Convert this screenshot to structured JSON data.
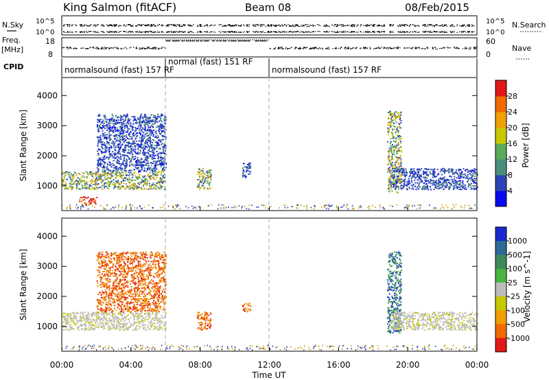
{
  "header": {
    "radar": "King Salmon (fitACF)",
    "beam": "Beam 08",
    "date": "08/Feb/2015"
  },
  "strips": {
    "nsky_label": "N.Sky",
    "nsky_ticks": [
      "10^5",
      "10^0"
    ],
    "nsearch_label": "N.Search",
    "freq_label": "Freq.",
    "freq_unit": "[MHz]",
    "freq_ticks": [
      "18",
      "8"
    ],
    "nave_label": "Nave",
    "nave_ticks": [
      "60",
      "0"
    ],
    "cpid_label": "CPID"
  },
  "cpid_segments": [
    {
      "label": "normalsound (fast) 157 RF",
      "start_hour": 0,
      "end_hour": 6
    },
    {
      "label": "normal (fast) 151 RF",
      "start_hour": 6,
      "end_hour": 12
    },
    {
      "label": "normalsound (fast) 157 RF",
      "start_hour": 12,
      "end_hour": 24
    }
  ],
  "x_axis": {
    "label": "Time UT",
    "ticks": [
      "00:00",
      "04:00",
      "08:00",
      "12:00",
      "16:00",
      "20:00",
      "00:00"
    ]
  },
  "chart_data": [
    {
      "type": "heatmap",
      "name": "power",
      "xlabel": "Time UT",
      "ylabel": "Slant Range [km]",
      "xlim_hours": [
        0,
        24
      ],
      "ylim": [
        180,
        4600
      ],
      "y_ticks": [
        1000,
        2000,
        3000,
        4000
      ],
      "colorbar": {
        "label": "Power [dB]",
        "ticks": [
          "4",
          "8",
          "12",
          "16",
          "20",
          "24",
          "28"
        ],
        "colors": [
          "#0a0af0",
          "#2d44b4",
          "#4a8f7c",
          "#5aaa5a",
          "#c8c800",
          "#f0a000",
          "#f06a00",
          "#e01818"
        ]
      },
      "scatter_regions": [
        {
          "t_start": 0.0,
          "t_end": 6.0,
          "r_start": 900,
          "r_end": 1500,
          "dominant": "green"
        },
        {
          "t_start": 2.0,
          "t_end": 6.0,
          "r_start": 1500,
          "r_end": 3400,
          "dominant": "blue"
        },
        {
          "t_start": 1.0,
          "t_end": 2.0,
          "r_start": 400,
          "r_end": 650,
          "dominant": "red"
        },
        {
          "t_start": 7.8,
          "t_end": 8.6,
          "r_start": 900,
          "r_end": 1600,
          "dominant": "green"
        },
        {
          "t_start": 10.4,
          "t_end": 10.9,
          "r_start": 1300,
          "r_end": 1800,
          "dominant": "blue"
        },
        {
          "t_start": 18.8,
          "t_end": 19.6,
          "r_start": 800,
          "r_end": 3500,
          "dominant": "green"
        },
        {
          "t_start": 19.0,
          "t_end": 24.0,
          "r_start": 900,
          "r_end": 1600,
          "dominant": "blue"
        }
      ]
    },
    {
      "type": "heatmap",
      "name": "velocity",
      "xlabel": "Time UT",
      "ylabel": "Slant Range [km]",
      "xlim_hours": [
        0,
        24
      ],
      "ylim": [
        180,
        4600
      ],
      "y_ticks": [
        1000,
        2000,
        3000,
        4000
      ],
      "colorbar": {
        "label": "Velocity [m s^-1]",
        "ticks": [
          "1000",
          "500",
          "100",
          "25",
          "-25",
          "-100",
          "-500",
          "-1000"
        ],
        "colors": [
          "#1a2ad0",
          "#2d6a96",
          "#3c8a5a",
          "#4ab440",
          "#bcbcbc",
          "#c8c800",
          "#f0a000",
          "#f06a00",
          "#e01818"
        ]
      },
      "scatter_regions": [
        {
          "t_start": 0.0,
          "t_end": 6.0,
          "r_start": 900,
          "r_end": 1500,
          "dominant": "gray"
        },
        {
          "t_start": 2.0,
          "t_end": 6.0,
          "r_start": 1500,
          "r_end": 3500,
          "dominant": "orange"
        },
        {
          "t_start": 7.8,
          "t_end": 8.6,
          "r_start": 900,
          "r_end": 1500,
          "dominant": "orange"
        },
        {
          "t_start": 10.4,
          "t_end": 10.9,
          "r_start": 1500,
          "r_end": 1800,
          "dominant": "orange"
        },
        {
          "t_start": 18.8,
          "t_end": 19.6,
          "r_start": 800,
          "r_end": 3500,
          "dominant": "blue"
        },
        {
          "t_start": 19.0,
          "t_end": 24.0,
          "r_start": 900,
          "r_end": 1500,
          "dominant": "gray"
        }
      ]
    }
  ]
}
